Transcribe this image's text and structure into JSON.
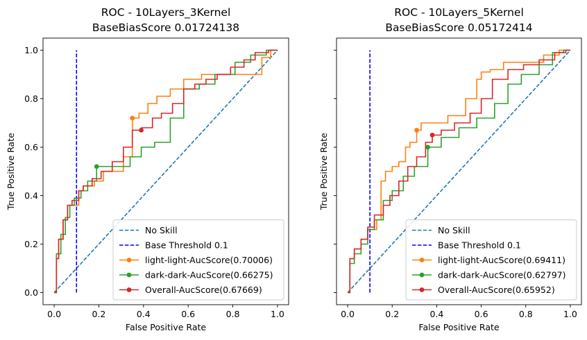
{
  "chart_data": [
    {
      "type": "line",
      "title": "ROC - 10Layers_3Kernel",
      "subtitle": "BaseBiasScore 0.01724138",
      "xlabel": "False Positive Rate",
      "ylabel": "True Positive Rate",
      "xlim": [
        -0.05,
        1.05
      ],
      "ylim": [
        -0.05,
        1.05
      ],
      "xticks": [
        "0.0",
        "0.2",
        "0.4",
        "0.6",
        "0.8",
        "1.0"
      ],
      "yticks": [
        "0.0",
        "0.2",
        "0.4",
        "0.6",
        "0.8",
        "1.0"
      ],
      "legend_position": "lower-right",
      "threshold_x": 0.1,
      "series": [
        {
          "name": "No Skill",
          "color": "#1f77b4",
          "style": "dashed",
          "x": [
            0,
            1
          ],
          "y": [
            0,
            1
          ]
        },
        {
          "name": "Base Threshold 0.1",
          "color": "#0000ff",
          "style": "dashed",
          "x": [
            0.1,
            0.1
          ],
          "y": [
            0,
            1
          ]
        },
        {
          "name": "light-light-AucScore(0.70006)",
          "color": "#ff7f0e",
          "style": "step",
          "marker_x": 0.35,
          "marker_y": 0.72,
          "x": [
            0,
            0.01,
            0.01,
            0.02,
            0.02,
            0.04,
            0.04,
            0.06,
            0.06,
            0.08,
            0.08,
            0.11,
            0.11,
            0.13,
            0.13,
            0.18,
            0.18,
            0.22,
            0.22,
            0.31,
            0.31,
            0.35,
            0.35,
            0.38,
            0.38,
            0.42,
            0.42,
            0.46,
            0.46,
            0.52,
            0.52,
            0.58,
            0.58,
            0.66,
            0.66,
            0.75,
            0.75,
            0.84,
            0.84,
            0.93,
            0.93,
            0.97,
            0.97,
            1.0
          ],
          "y": [
            0,
            0,
            0.14,
            0.14,
            0.22,
            0.22,
            0.3,
            0.3,
            0.36,
            0.36,
            0.36,
            0.36,
            0.42,
            0.42,
            0.44,
            0.44,
            0.46,
            0.46,
            0.5,
            0.5,
            0.56,
            0.56,
            0.72,
            0.72,
            0.74,
            0.74,
            0.78,
            0.78,
            0.81,
            0.81,
            0.84,
            0.84,
            0.88,
            0.88,
            0.9,
            0.9,
            0.9,
            0.9,
            0.9,
            0.9,
            0.97,
            0.97,
            1.0,
            1.0
          ]
        },
        {
          "name": "dark-dark-AucScore(0.66275)",
          "color": "#2ca02c",
          "style": "step",
          "marker_x": 0.19,
          "marker_y": 0.52,
          "x": [
            0,
            0.01,
            0.01,
            0.03,
            0.03,
            0.05,
            0.05,
            0.07,
            0.07,
            0.09,
            0.09,
            0.12,
            0.12,
            0.15,
            0.15,
            0.19,
            0.19,
            0.27,
            0.27,
            0.34,
            0.34,
            0.39,
            0.39,
            0.45,
            0.45,
            0.52,
            0.52,
            0.58,
            0.58,
            0.65,
            0.65,
            0.72,
            0.72,
            0.81,
            0.81,
            0.88,
            0.88,
            0.95,
            0.95,
            1.0
          ],
          "y": [
            0,
            0,
            0.16,
            0.16,
            0.24,
            0.24,
            0.31,
            0.31,
            0.36,
            0.36,
            0.39,
            0.39,
            0.42,
            0.42,
            0.46,
            0.46,
            0.52,
            0.52,
            0.52,
            0.52,
            0.56,
            0.56,
            0.6,
            0.6,
            0.62,
            0.62,
            0.72,
            0.72,
            0.84,
            0.84,
            0.86,
            0.86,
            0.9,
            0.9,
            0.95,
            0.95,
            0.98,
            0.98,
            1.0,
            1.0
          ]
        },
        {
          "name": "Overall-AucScore(0.67669)",
          "color": "#d62728",
          "style": "step",
          "marker_x": 0.39,
          "marker_y": 0.67,
          "x": [
            0,
            0.01,
            0.01,
            0.02,
            0.02,
            0.04,
            0.04,
            0.06,
            0.06,
            0.08,
            0.08,
            0.11,
            0.11,
            0.13,
            0.13,
            0.17,
            0.17,
            0.21,
            0.21,
            0.26,
            0.26,
            0.31,
            0.31,
            0.35,
            0.35,
            0.39,
            0.39,
            0.44,
            0.44,
            0.48,
            0.48,
            0.53,
            0.53,
            0.58,
            0.58,
            0.63,
            0.63,
            0.68,
            0.68,
            0.73,
            0.73,
            0.79,
            0.79,
            0.85,
            0.85,
            0.9,
            0.9,
            0.96,
            0.96,
            1.0
          ],
          "y": [
            0,
            0,
            0.14,
            0.14,
            0.22,
            0.22,
            0.3,
            0.3,
            0.36,
            0.36,
            0.38,
            0.38,
            0.42,
            0.42,
            0.44,
            0.44,
            0.47,
            0.47,
            0.5,
            0.5,
            0.54,
            0.54,
            0.6,
            0.6,
            0.67,
            0.67,
            0.68,
            0.68,
            0.72,
            0.72,
            0.74,
            0.74,
            0.78,
            0.78,
            0.84,
            0.84,
            0.86,
            0.86,
            0.88,
            0.88,
            0.9,
            0.9,
            0.93,
            0.93,
            0.96,
            0.96,
            0.99,
            0.99,
            1.0,
            1.0
          ]
        }
      ]
    },
    {
      "type": "line",
      "title": "ROC - 10Layers_5Kernel",
      "subtitle": "BaseBiasScore 0.05172414",
      "xlabel": "False Positive Rate",
      "ylabel": "True Positive Rate",
      "xlim": [
        -0.05,
        1.05
      ],
      "ylim": [
        -0.05,
        1.05
      ],
      "xticks": [
        "0.0",
        "0.2",
        "0.4",
        "0.6",
        "0.8",
        "1.0"
      ],
      "yticks": [
        "0.0",
        "0.2",
        "0.4",
        "0.6",
        "0.8",
        "1.0"
      ],
      "legend_position": "lower-right",
      "threshold_x": 0.1,
      "series": [
        {
          "name": "No Skill",
          "color": "#1f77b4",
          "style": "dashed",
          "x": [
            0,
            1
          ],
          "y": [
            0,
            1
          ]
        },
        {
          "name": "Base Threshold 0.1",
          "color": "#0000ff",
          "style": "dashed",
          "x": [
            0.1,
            0.1
          ],
          "y": [
            0,
            1
          ]
        },
        {
          "name": "light-light-AucScore(0.69411)",
          "color": "#ff7f0e",
          "style": "step",
          "marker_x": 0.31,
          "marker_y": 0.67,
          "x": [
            0,
            0.01,
            0.01,
            0.03,
            0.03,
            0.06,
            0.06,
            0.09,
            0.09,
            0.13,
            0.13,
            0.15,
            0.15,
            0.17,
            0.17,
            0.2,
            0.2,
            0.23,
            0.23,
            0.26,
            0.26,
            0.28,
            0.28,
            0.31,
            0.31,
            0.33,
            0.33,
            0.39,
            0.39,
            0.45,
            0.45,
            0.53,
            0.53,
            0.58,
            0.58,
            0.6,
            0.6,
            0.64,
            0.64,
            0.7,
            0.7,
            0.75,
            0.75,
            0.81,
            0.81,
            0.88,
            0.88,
            0.95,
            0.95,
            1.0
          ],
          "y": [
            0,
            0,
            0.14,
            0.14,
            0.18,
            0.18,
            0.22,
            0.22,
            0.26,
            0.26,
            0.3,
            0.3,
            0.46,
            0.46,
            0.5,
            0.5,
            0.52,
            0.52,
            0.54,
            0.54,
            0.6,
            0.6,
            0.62,
            0.62,
            0.67,
            0.67,
            0.7,
            0.7,
            0.7,
            0.7,
            0.73,
            0.73,
            0.8,
            0.8,
            0.88,
            0.88,
            0.91,
            0.91,
            0.92,
            0.92,
            0.95,
            0.95,
            0.95,
            0.95,
            0.95,
            0.95,
            0.98,
            0.98,
            1.0,
            1.0
          ]
        },
        {
          "name": "dark-dark-AucScore(0.62797)",
          "color": "#2ca02c",
          "style": "step",
          "marker_x": 0.36,
          "marker_y": 0.6,
          "x": [
            0,
            0.01,
            0.01,
            0.03,
            0.03,
            0.06,
            0.06,
            0.09,
            0.09,
            0.12,
            0.12,
            0.16,
            0.16,
            0.2,
            0.2,
            0.25,
            0.25,
            0.3,
            0.3,
            0.36,
            0.36,
            0.42,
            0.42,
            0.5,
            0.5,
            0.58,
            0.58,
            0.66,
            0.66,
            0.72,
            0.72,
            0.78,
            0.78,
            0.86,
            0.86,
            0.92,
            0.92,
            0.97,
            0.97,
            1.0
          ],
          "y": [
            0,
            0,
            0.12,
            0.12,
            0.16,
            0.16,
            0.2,
            0.2,
            0.26,
            0.26,
            0.3,
            0.3,
            0.38,
            0.38,
            0.42,
            0.42,
            0.48,
            0.48,
            0.52,
            0.52,
            0.6,
            0.6,
            0.64,
            0.64,
            0.68,
            0.68,
            0.72,
            0.72,
            0.78,
            0.78,
            0.86,
            0.86,
            0.9,
            0.9,
            0.94,
            0.94,
            0.99,
            0.99,
            1.0,
            1.0
          ]
        },
        {
          "name": "Overall-AucScore(0.65952)",
          "color": "#d62728",
          "style": "step",
          "marker_x": 0.38,
          "marker_y": 0.65,
          "x": [
            0,
            0.01,
            0.01,
            0.03,
            0.03,
            0.06,
            0.06,
            0.09,
            0.09,
            0.12,
            0.12,
            0.16,
            0.16,
            0.19,
            0.19,
            0.23,
            0.23,
            0.27,
            0.27,
            0.31,
            0.31,
            0.35,
            0.35,
            0.38,
            0.38,
            0.42,
            0.42,
            0.48,
            0.48,
            0.55,
            0.55,
            0.6,
            0.6,
            0.65,
            0.65,
            0.72,
            0.72,
            0.79,
            0.79,
            0.86,
            0.86,
            0.93,
            0.93,
            0.98,
            0.98,
            1.0
          ],
          "y": [
            0,
            0,
            0.14,
            0.14,
            0.18,
            0.18,
            0.22,
            0.22,
            0.27,
            0.27,
            0.32,
            0.32,
            0.36,
            0.36,
            0.4,
            0.4,
            0.46,
            0.46,
            0.52,
            0.52,
            0.56,
            0.56,
            0.62,
            0.62,
            0.65,
            0.65,
            0.67,
            0.67,
            0.7,
            0.7,
            0.74,
            0.74,
            0.8,
            0.8,
            0.88,
            0.88,
            0.92,
            0.92,
            0.94,
            0.94,
            0.96,
            0.96,
            0.99,
            0.99,
            1.0,
            1.0
          ]
        }
      ]
    }
  ]
}
